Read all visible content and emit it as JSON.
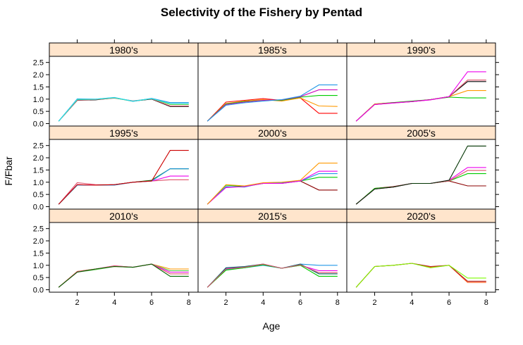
{
  "chart_data": {
    "type": "line",
    "title": "Selectivity of the Fishery by Pentad",
    "xlabel": "Age",
    "ylabel": "F/Fbar",
    "xlim": [
      0.5,
      8.5
    ],
    "ylim": [
      -0.1,
      2.75
    ],
    "x_ticks": [
      2,
      4,
      6,
      8
    ],
    "y_ticks": [
      0.0,
      0.5,
      1.0,
      1.5,
      2.0,
      2.5
    ],
    "x_tick_labels": [
      "2",
      "4",
      "6",
      "8"
    ],
    "y_tick_labels": [
      "0.0",
      "0.5",
      "1.0",
      "1.5",
      "2.0",
      "2.5"
    ],
    "ages": [
      1,
      2,
      3,
      4,
      5,
      6,
      7,
      8
    ],
    "strip_color": "#ffe5cc",
    "panels": [
      {
        "label": "1980's",
        "series": [
          {
            "color": "#000000",
            "values": [
              0.1,
              0.95,
              0.97,
              1.05,
              0.92,
              1.0,
              0.7,
              0.7
            ]
          },
          {
            "color": "#df536b",
            "values": [
              0.1,
              0.96,
              0.98,
              1.04,
              0.93,
              1.01,
              0.72,
              0.72
            ]
          },
          {
            "color": "#61d04f",
            "values": [
              0.1,
              0.98,
              0.99,
              1.05,
              0.91,
              1.02,
              0.78,
              0.78
            ]
          },
          {
            "color": "#2297e6",
            "values": [
              0.1,
              1.01,
              1.0,
              1.07,
              0.91,
              1.03,
              0.86,
              0.86
            ]
          },
          {
            "color": "#28e2e5",
            "values": [
              0.1,
              0.99,
              1.0,
              1.06,
              0.92,
              1.02,
              0.82,
              0.82
            ]
          }
        ]
      },
      {
        "label": "1985's",
        "series": [
          {
            "color": "#ff0000",
            "values": [
              0.1,
              0.88,
              0.95,
              1.02,
              0.95,
              1.05,
              0.42,
              0.42
            ]
          },
          {
            "color": "#ff9900",
            "values": [
              0.1,
              0.82,
              0.92,
              0.98,
              0.92,
              1.05,
              0.72,
              0.7
            ]
          },
          {
            "color": "#00cc00",
            "values": [
              0.1,
              0.8,
              0.9,
              0.95,
              0.95,
              1.08,
              1.15,
              1.15
            ]
          },
          {
            "color": "#cd0bbc",
            "values": [
              0.1,
              0.78,
              0.88,
              0.95,
              0.97,
              1.1,
              1.38,
              1.38
            ]
          },
          {
            "color": "#2297e6",
            "values": [
              0.1,
              0.75,
              0.85,
              0.92,
              0.98,
              1.12,
              1.58,
              1.58
            ]
          }
        ]
      },
      {
        "label": "1990's",
        "series": [
          {
            "color": "#00cc00",
            "values": [
              0.1,
              0.8,
              0.86,
              0.92,
              0.98,
              1.08,
              1.05,
              1.05
            ]
          },
          {
            "color": "#ff9900",
            "values": [
              0.1,
              0.8,
              0.85,
              0.9,
              0.98,
              1.1,
              1.35,
              1.35
            ]
          },
          {
            "color": "#000000",
            "values": [
              0.1,
              0.78,
              0.85,
              0.9,
              0.98,
              1.1,
              1.72,
              1.72
            ]
          },
          {
            "color": "#df536b",
            "values": [
              0.1,
              0.78,
              0.84,
              0.9,
              0.97,
              1.1,
              1.78,
              1.78
            ]
          },
          {
            "color": "#ee00ee",
            "values": [
              0.1,
              0.78,
              0.84,
              0.9,
              0.97,
              1.1,
              2.12,
              2.12
            ]
          }
        ]
      },
      {
        "label": "1995's",
        "series": [
          {
            "color": "#df536b",
            "values": [
              0.1,
              0.98,
              0.9,
              0.9,
              1.0,
              1.05,
              1.1,
              1.1
            ]
          },
          {
            "color": "#ee00ee",
            "values": [
              0.1,
              0.9,
              0.88,
              0.9,
              1.0,
              1.05,
              1.25,
              1.25
            ]
          },
          {
            "color": "#007700",
            "values": [
              0.1,
              0.88,
              0.88,
              0.9,
              1.0,
              1.08,
              1.55,
              1.55
            ]
          },
          {
            "color": "#2297e6",
            "values": [
              0.1,
              0.88,
              0.88,
              0.88,
              1.0,
              1.05,
              1.55,
              1.55
            ]
          },
          {
            "color": "#cc0000",
            "values": [
              0.1,
              0.9,
              0.88,
              0.9,
              1.0,
              1.05,
              2.3,
              2.3
            ]
          }
        ]
      },
      {
        "label": "2000's",
        "series": [
          {
            "color": "#8b0000",
            "values": [
              0.1,
              0.8,
              0.82,
              0.95,
              0.95,
              1.05,
              0.68,
              0.68
            ]
          },
          {
            "color": "#00cc00",
            "values": [
              0.1,
              0.88,
              0.82,
              0.95,
              0.98,
              1.05,
              1.2,
              1.2
            ]
          },
          {
            "color": "#2297e6",
            "values": [
              0.1,
              0.82,
              0.8,
              0.97,
              0.98,
              1.05,
              1.35,
              1.35
            ]
          },
          {
            "color": "#ee00ee",
            "values": [
              0.1,
              0.78,
              0.82,
              0.95,
              0.95,
              1.05,
              1.45,
              1.45
            ]
          },
          {
            "color": "#ff9900",
            "values": [
              0.1,
              0.9,
              0.85,
              0.98,
              1.0,
              1.08,
              1.78,
              1.78
            ]
          }
        ]
      },
      {
        "label": "2005's",
        "series": [
          {
            "color": "#8b0000",
            "values": [
              0.1,
              0.75,
              0.82,
              0.95,
              0.95,
              1.05,
              0.85,
              0.85
            ]
          },
          {
            "color": "#00cc00",
            "values": [
              0.1,
              0.75,
              0.8,
              0.95,
              0.95,
              1.05,
              1.35,
              1.35
            ]
          },
          {
            "color": "#df536b",
            "values": [
              0.1,
              0.72,
              0.8,
              0.95,
              0.95,
              1.05,
              1.48,
              1.48
            ]
          },
          {
            "color": "#ee00ee",
            "values": [
              0.1,
              0.72,
              0.8,
              0.95,
              0.95,
              1.08,
              1.6,
              1.6
            ]
          },
          {
            "color": "#003300",
            "values": [
              0.1,
              0.72,
              0.8,
              0.95,
              0.95,
              1.08,
              2.48,
              2.48
            ]
          }
        ]
      },
      {
        "label": "2010's",
        "series": [
          {
            "color": "#ff9900",
            "values": [
              0.1,
              0.75,
              0.85,
              0.95,
              0.92,
              1.05,
              0.85,
              0.85
            ]
          },
          {
            "color": "#61d04f",
            "values": [
              0.1,
              0.72,
              0.82,
              0.95,
              0.92,
              1.05,
              0.78,
              0.78
            ]
          },
          {
            "color": "#ee00ee",
            "values": [
              0.1,
              0.72,
              0.85,
              0.98,
              0.92,
              1.05,
              0.72,
              0.72
            ]
          },
          {
            "color": "#df536b",
            "values": [
              0.1,
              0.75,
              0.85,
              0.98,
              0.92,
              1.05,
              0.65,
              0.65
            ]
          },
          {
            "color": "#006600",
            "values": [
              0.1,
              0.72,
              0.85,
              0.95,
              0.92,
              1.05,
              0.55,
              0.55
            ]
          }
        ]
      },
      {
        "label": "2015's",
        "series": [
          {
            "color": "#2297e6",
            "values": [
              0.1,
              0.82,
              0.9,
              1.0,
              0.88,
              1.05,
              1.0,
              1.0
            ]
          },
          {
            "color": "#ee00ee",
            "values": [
              0.1,
              0.88,
              0.92,
              1.05,
              0.88,
              1.0,
              0.78,
              0.78
            ]
          },
          {
            "color": "#006666",
            "values": [
              0.1,
              0.9,
              0.95,
              1.05,
              0.88,
              1.05,
              0.65,
              0.65
            ]
          },
          {
            "color": "#00cc00",
            "values": [
              0.1,
              0.8,
              0.9,
              1.02,
              0.88,
              1.0,
              0.55,
              0.55
            ]
          },
          {
            "color": "#df536b",
            "values": [
              0.1,
              0.85,
              0.92,
              1.05,
              0.88,
              1.02,
              0.7,
              0.7
            ]
          }
        ]
      },
      {
        "label": "2020's",
        "series": [
          {
            "color": "#ff4500",
            "values": [
              0.1,
              0.95,
              1.0,
              1.08,
              0.92,
              1.0,
              0.3,
              0.3
            ]
          },
          {
            "color": "#b22222",
            "values": [
              0.1,
              0.95,
              1.0,
              1.08,
              0.95,
              1.0,
              0.35,
              0.35
            ]
          },
          {
            "color": "#7cfc00",
            "values": [
              0.1,
              0.95,
              1.0,
              1.08,
              0.9,
              1.0,
              0.48,
              0.48
            ]
          }
        ]
      }
    ]
  }
}
